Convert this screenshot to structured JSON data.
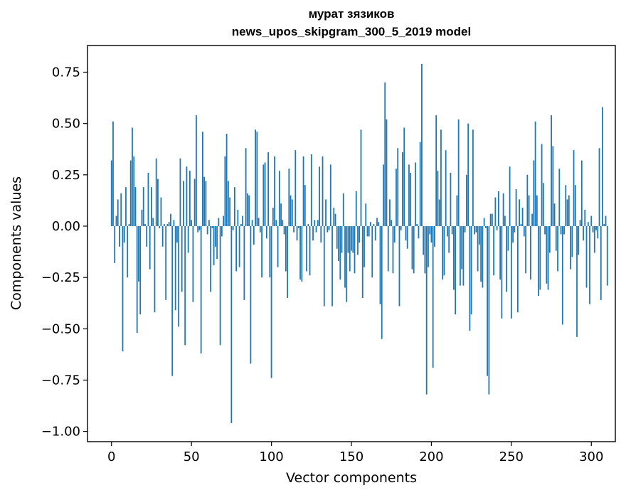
{
  "chart_data": {
    "type": "bar",
    "title_line1": "мурат зязиков",
    "title_line2": "news_upos_skipgram_300_5_2019 model",
    "xlabel": "Vector components",
    "ylabel": "Components values",
    "xlim": [
      -15,
      315
    ],
    "ylim": [
      -1.05,
      0.88
    ],
    "xticks": [
      0,
      50,
      100,
      150,
      200,
      250,
      300
    ],
    "yticks": [
      0.75,
      0.5,
      0.25,
      0.0,
      -0.25,
      -0.5,
      -0.75,
      -1.0
    ],
    "ytick_labels": [
      "0.75",
      "0.50",
      "0.25",
      "0.00",
      "−0.25",
      "−0.50",
      "−0.75",
      "−1.00"
    ],
    "bar_color": "#1f77b4",
    "values": [
      0.32,
      0.51,
      -0.18,
      0.05,
      0.13,
      -0.1,
      0.16,
      -0.61,
      -0.08,
      0.19,
      -0.25,
      0.01,
      0.32,
      0.48,
      0.34,
      0.19,
      -0.52,
      -0.27,
      -0.43,
      0.08,
      0.19,
      0.01,
      -0.1,
      0.26,
      -0.21,
      0.19,
      0.04,
      -0.42,
      0.33,
      0.23,
      -0.01,
      0.14,
      -0.1,
      0.01,
      -0.36,
      0.01,
      0.02,
      0.06,
      -0.73,
      0.03,
      -0.41,
      -0.08,
      -0.49,
      0.33,
      -0.32,
      0.22,
      -0.58,
      0.29,
      -0.13,
      0.27,
      0.03,
      -0.37,
      0.23,
      0.54,
      -0.03,
      -0.02,
      -0.62,
      0.46,
      0.24,
      0.22,
      -0.04,
      0.03,
      -0.32,
      -0.01,
      -0.19,
      -0.1,
      -0.16,
      0.04,
      -0.58,
      -0.05,
      0.05,
      0.34,
      0.45,
      0.22,
      0.14,
      -0.96,
      -0.02,
      0.19,
      -0.22,
      0.08,
      -0.2,
      0.01,
      0.05,
      -0.36,
      0.38,
      0.16,
      0.15,
      -0.67,
      0.03,
      -0.09,
      0.47,
      0.46,
      0.04,
      -0.03,
      -0.25,
      0.3,
      0.31,
      -0.06,
      0.36,
      -0.25,
      -0.74,
      0.09,
      0.34,
      0.03,
      -0.2,
      0.27,
      0.11,
      0.03,
      -0.04,
      -0.22,
      -0.35,
      0.28,
      0.15,
      0.13,
      -0.03,
      0.37,
      -0.07,
      -0.01,
      -0.26,
      -0.27,
      0.34,
      0.2,
      -0.22,
      0.01,
      -0.24,
      0.35,
      -0.07,
      0.03,
      -0.03,
      0.03,
      0.29,
      -0.08,
      0.34,
      -0.39,
      0.13,
      -0.03,
      -0.02,
      0.3,
      -0.39,
      0.09,
      0.06,
      -0.11,
      -0.17,
      -0.26,
      -0.13,
      0.16,
      -0.3,
      -0.37,
      -0.13,
      -0.22,
      -0.12,
      -0.13,
      -0.23,
      0.17,
      -0.14,
      -0.08,
      0.47,
      -0.35,
      -0.2,
      0.11,
      -0.05,
      -0.05,
      0.02,
      -0.25,
      0.01,
      -0.07,
      0.04,
      0.02,
      -0.38,
      -0.55,
      0.3,
      0.7,
      0.52,
      -0.22,
      0.13,
      0.03,
      -0.23,
      -0.08,
      0.28,
      0.38,
      -0.39,
      -0.02,
      0.36,
      0.48,
      -0.07,
      -0.11,
      0.3,
      0.26,
      -0.21,
      -0.23,
      0.31,
      0.01,
      -0.06,
      0.41,
      0.79,
      -0.14,
      -0.23,
      -0.82,
      -0.2,
      -0.04,
      -0.08,
      -0.69,
      -0.1,
      0.54,
      0.27,
      0.13,
      0.47,
      -0.26,
      -0.24,
      0.37,
      -0.05,
      -0.13,
      0.26,
      -0.04,
      -0.31,
      -0.43,
      0.15,
      0.52,
      -0.29,
      -0.21,
      -0.29,
      -0.03,
      0.25,
      0.5,
      -0.51,
      -0.43,
      0.47,
      -0.04,
      -0.03,
      -0.22,
      -0.09,
      -0.27,
      -0.3,
      0.04,
      -0.01,
      -0.73,
      -0.82,
      0.06,
      0.06,
      -0.24,
      0.14,
      -0.02,
      0.17,
      -0.26,
      -0.45,
      0.16,
      0.05,
      -0.32,
      -0.12,
      0.29,
      -0.45,
      -0.08,
      -0.03,
      0.18,
      -0.42,
      0.13,
      0.01,
      0.09,
      -0.05,
      -0.23,
      0.25,
      0.15,
      -0.26,
      0.06,
      0.32,
      0.51,
      0.15,
      -0.34,
      -0.31,
      0.4,
      0.21,
      -0.04,
      -0.28,
      -0.31,
      -0.13,
      0.54,
      0.39,
      0.11,
      -0.12,
      -0.22,
      0.28,
      -0.04,
      -0.48,
      -0.04,
      0.2,
      0.13,
      0.15,
      -0.21,
      -0.15,
      0.37,
      0.2,
      -0.54,
      -0.14,
      0.03,
      0.32,
      -0.07,
      0.08,
      -0.3,
      0.02,
      -0.38,
      0.05,
      -0.03,
      -0.13,
      -0.02,
      -0.06,
      0.38,
      -0.36,
      0.58,
      0.01,
      0.05,
      -0.29
    ]
  }
}
